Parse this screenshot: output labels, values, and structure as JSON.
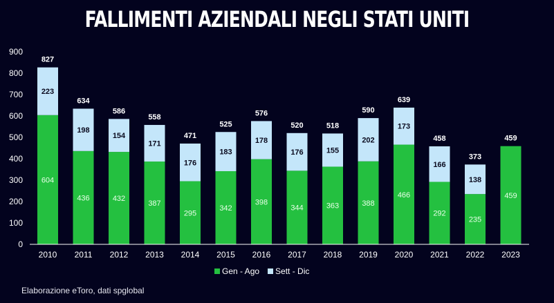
{
  "chart_data": {
    "type": "bar",
    "stacked": true,
    "title": "FALLIMENTI AZIENDALI NEGLI STATI UNITI",
    "xlabel": "",
    "ylabel": "",
    "ylim": [
      0,
      900
    ],
    "yticks": [
      0,
      100,
      200,
      300,
      400,
      500,
      600,
      700,
      800,
      900
    ],
    "grid": false,
    "legend_position": "bottom",
    "categories": [
      "2010",
      "2011",
      "2012",
      "2013",
      "2014",
      "2015",
      "2016",
      "2017",
      "2018",
      "2019",
      "2020",
      "2021",
      "2022",
      "2023"
    ],
    "series": [
      {
        "name": "Gen - Ago",
        "color": "#24c040",
        "label_color": "#e8ffe8",
        "values": [
          604,
          436,
          432,
          387,
          295,
          342,
          398,
          344,
          363,
          388,
          466,
          292,
          235,
          459
        ]
      },
      {
        "name": "Sett - Dic",
        "color": "#c4e6fa",
        "label_color": "#0a0a1e",
        "values": [
          223,
          198,
          154,
          171,
          176,
          183,
          178,
          176,
          155,
          202,
          173,
          166,
          138,
          null
        ]
      }
    ],
    "totals": [
      827,
      634,
      586,
      558,
      471,
      525,
      576,
      520,
      518,
      590,
      639,
      458,
      373,
      459
    ]
  },
  "legend": {
    "items": [
      {
        "label": "Gen - Ago",
        "color": "#24c040"
      },
      {
        "label": "Sett - Dic",
        "color": "#c4e6fa"
      }
    ]
  },
  "source": "Elaborazione eToro, dati spglobal",
  "colors": {
    "background": "#03031e",
    "axis": "#ffffff",
    "text": "#ffffff"
  }
}
